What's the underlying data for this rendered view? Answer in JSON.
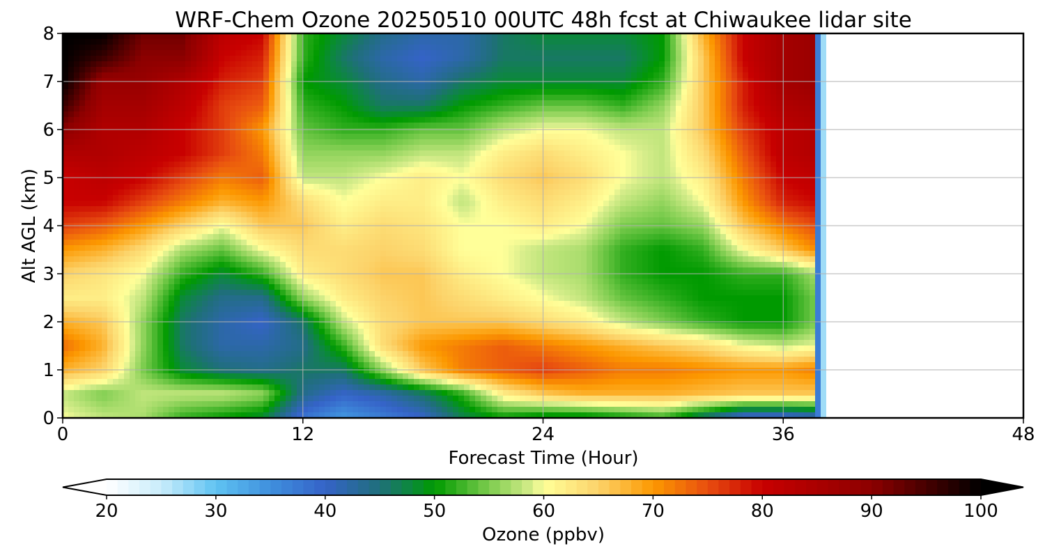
{
  "chart_data": {
    "type": "heatmap",
    "title": "WRF-Chem Ozone  20250510 00UTC 48h fcst at Chiwaukee lidar site",
    "xlabel": "Forecast Time (Hour)",
    "ylabel": "Alt AGL (km)",
    "xlim": [
      0,
      48
    ],
    "ylim": [
      0,
      8
    ],
    "x_ticks": [
      "0",
      "12",
      "24",
      "36",
      "48"
    ],
    "y_ticks": [
      "0",
      "1",
      "2",
      "3",
      "4",
      "5",
      "6",
      "7",
      "8"
    ],
    "grid": true,
    "data_end_hour": 38.2,
    "x_hours": [
      0,
      2,
      4,
      6,
      8,
      10,
      12,
      14,
      16,
      18,
      20,
      22,
      24,
      26,
      28,
      30,
      32,
      34,
      36,
      38
    ],
    "y_km": [
      0,
      0.5,
      1,
      1.5,
      2,
      2.5,
      3,
      3.5,
      4,
      4.5,
      5,
      5.5,
      6,
      6.5,
      7,
      7.5,
      8
    ],
    "z_ppbv": [
      [
        60,
        58,
        57,
        52,
        50,
        48,
        38,
        34,
        37,
        40,
        47,
        50,
        48,
        48,
        50,
        52,
        45,
        38,
        38,
        40
      ],
      [
        58,
        55,
        58,
        58,
        58,
        56,
        44,
        40,
        42,
        46,
        52,
        62,
        66,
        68,
        68,
        68,
        67,
        66,
        66,
        66
      ],
      [
        68,
        65,
        55,
        48,
        45,
        44,
        46,
        46,
        56,
        66,
        72,
        74,
        76,
        74,
        72,
        72,
        71,
        70,
        70,
        72
      ],
      [
        73,
        68,
        56,
        46,
        42,
        42,
        44,
        52,
        64,
        70,
        72,
        74,
        72,
        70,
        68,
        66,
        64,
        60,
        58,
        60
      ],
      [
        68,
        66,
        56,
        46,
        42,
        40,
        46,
        58,
        64,
        66,
        66,
        66,
        64,
        62,
        58,
        55,
        52,
        50,
        50,
        56
      ],
      [
        62,
        62,
        58,
        48,
        44,
        44,
        56,
        62,
        65,
        66,
        64,
        62,
        60,
        58,
        54,
        52,
        50,
        50,
        50,
        56
      ],
      [
        65,
        63,
        60,
        52,
        48,
        52,
        62,
        64,
        66,
        66,
        62,
        60,
        58,
        57,
        52,
        50,
        50,
        52,
        52,
        58
      ],
      [
        70,
        68,
        64,
        57,
        54,
        60,
        64,
        64,
        65,
        64,
        60,
        60,
        58,
        57,
        52,
        50,
        52,
        60,
        66,
        72
      ],
      [
        76,
        74,
        70,
        65,
        60,
        66,
        66,
        62,
        64,
        63,
        60,
        60,
        62,
        60,
        55,
        54,
        56,
        66,
        72,
        76
      ],
      [
        80,
        80,
        76,
        72,
        68,
        70,
        64,
        60,
        62,
        62,
        58,
        62,
        64,
        62,
        58,
        56,
        60,
        70,
        78,
        80
      ],
      [
        80,
        82,
        80,
        76,
        72,
        74,
        58,
        58,
        60,
        62,
        60,
        64,
        66,
        64,
        60,
        58,
        62,
        72,
        80,
        82
      ],
      [
        84,
        84,
        82,
        80,
        76,
        72,
        56,
        56,
        56,
        58,
        58,
        62,
        64,
        62,
        60,
        58,
        64,
        74,
        82,
        84
      ],
      [
        90,
        84,
        84,
        80,
        76,
        70,
        54,
        52,
        52,
        54,
        54,
        58,
        60,
        60,
        58,
        58,
        66,
        76,
        82,
        84
      ],
      [
        96,
        86,
        86,
        82,
        76,
        74,
        52,
        50,
        46,
        46,
        50,
        52,
        54,
        54,
        52,
        56,
        66,
        78,
        84,
        86
      ],
      [
        100,
        88,
        88,
        84,
        78,
        76,
        50,
        48,
        44,
        42,
        46,
        48,
        48,
        48,
        48,
        52,
        66,
        78,
        86,
        88
      ],
      [
        100,
        96,
        90,
        90,
        80,
        78,
        52,
        46,
        42,
        40,
        42,
        46,
        46,
        46,
        46,
        50,
        66,
        80,
        86,
        88
      ],
      [
        100,
        100,
        92,
        92,
        82,
        80,
        52,
        48,
        44,
        42,
        42,
        46,
        48,
        48,
        48,
        50,
        68,
        80,
        86,
        88
      ]
    ],
    "colorbar": {
      "label": "Ozone  (ppbv)",
      "min": 20,
      "max": 100,
      "ticks": [
        "20",
        "30",
        "40",
        "50",
        "60",
        "70",
        "80",
        "90",
        "100"
      ],
      "extend": "both",
      "stops": [
        {
          "v": 20,
          "c": "#ffffff"
        },
        {
          "v": 25,
          "c": "#c8ecfb"
        },
        {
          "v": 30,
          "c": "#5fc3f2"
        },
        {
          "v": 35,
          "c": "#3f8fdd"
        },
        {
          "v": 40,
          "c": "#3563c8"
        },
        {
          "v": 45,
          "c": "#1f6f7a"
        },
        {
          "v": 48,
          "c": "#0a8a38"
        },
        {
          "v": 50,
          "c": "#009a00"
        },
        {
          "v": 55,
          "c": "#7ccc4e"
        },
        {
          "v": 59,
          "c": "#d8ee8c"
        },
        {
          "v": 60,
          "c": "#ffff99"
        },
        {
          "v": 65,
          "c": "#fcd36a"
        },
        {
          "v": 70,
          "c": "#fc9800"
        },
        {
          "v": 75,
          "c": "#e84e10"
        },
        {
          "v": 80,
          "c": "#c80000"
        },
        {
          "v": 90,
          "c": "#8c0000"
        },
        {
          "v": 100,
          "c": "#000000"
        }
      ]
    }
  }
}
